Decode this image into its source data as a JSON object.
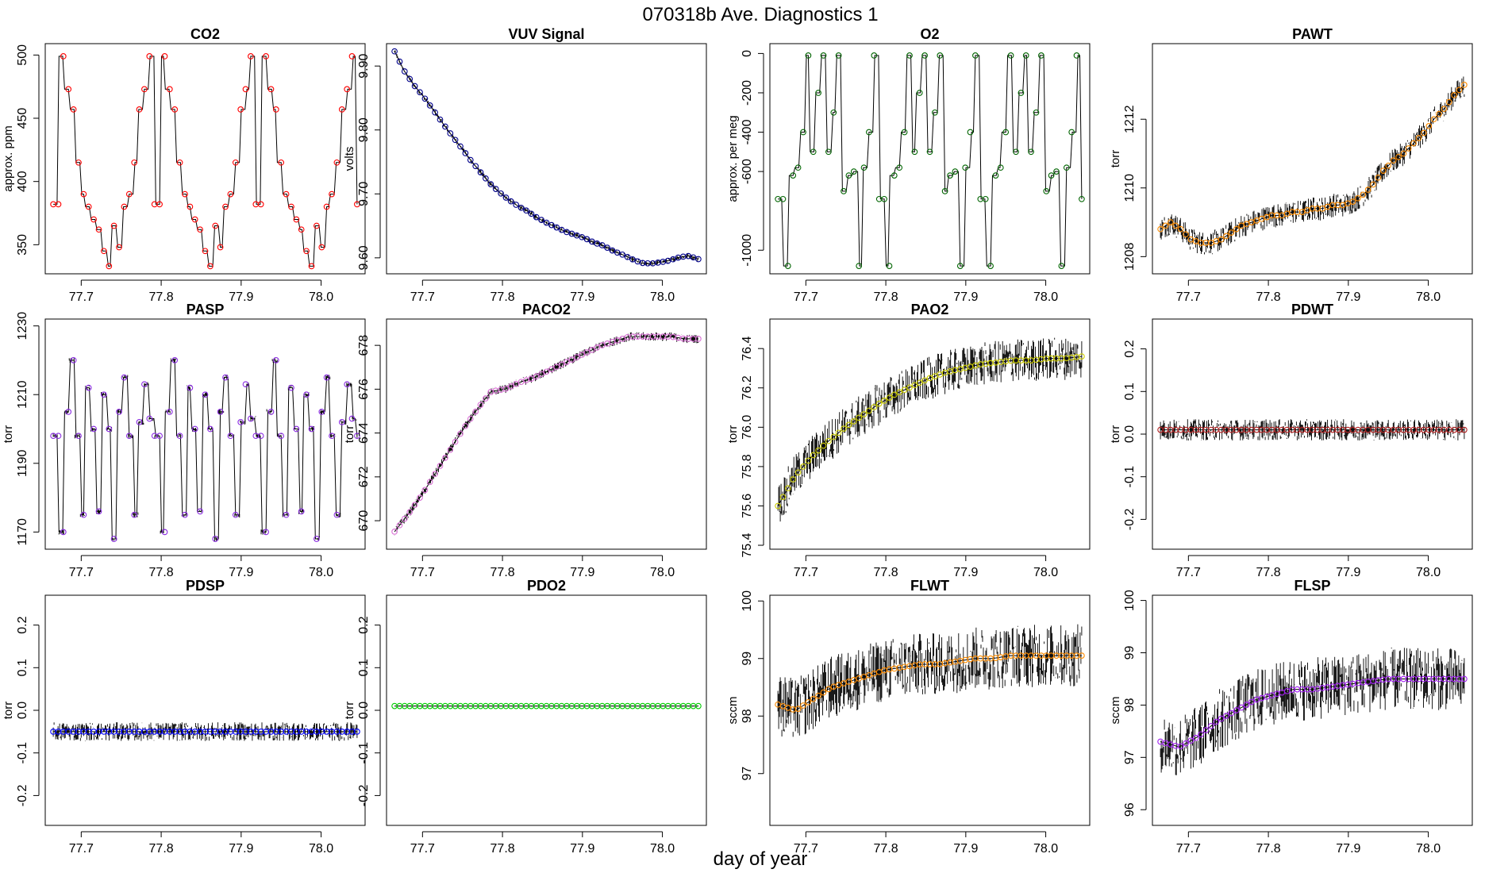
{
  "title": "070318b   Ave. Diagnostics 1",
  "xlabel": "day of year",
  "chart_data": [
    {
      "type": "line",
      "title": "CO2",
      "ylabel": "approx. ppm",
      "xlim": [
        77.655,
        78.055
      ],
      "ylim": [
        327,
        509
      ],
      "xticks": [
        "77.7",
        "77.8",
        "77.9",
        "78.0"
      ],
      "yticks": [
        "350",
        "400",
        "450",
        "500"
      ],
      "pattern": "cal_cycle",
      "levels": [
        382,
        499,
        473,
        457,
        415,
        390,
        380,
        370,
        362,
        345,
        333,
        365,
        348,
        380,
        390,
        415,
        457,
        473,
        499
      ],
      "values": [],
      "noise": 0,
      "marker": "#ff0000"
    },
    {
      "type": "line",
      "title": "VUV Signal",
      "ylabel": "volts",
      "xlim": [
        77.655,
        78.055
      ],
      "ylim": [
        9.575,
        9.935
      ],
      "xticks": [
        "77.7",
        "77.8",
        "77.9",
        "78.0"
      ],
      "yticks": [
        "9.60",
        "9.70",
        "9.80",
        "9.90"
      ],
      "pattern": "smooth",
      "values": [
        9.923,
        9.893,
        9.871,
        9.853,
        9.833,
        9.812,
        9.792,
        9.773,
        9.753,
        9.735,
        9.717,
        9.703,
        9.691,
        9.681,
        9.673,
        9.663,
        9.655,
        9.648,
        9.641,
        9.636,
        9.631,
        9.624,
        9.619,
        9.611,
        9.605,
        9.598,
        9.592,
        9.591,
        9.593,
        9.596,
        9.601,
        9.603,
        9.598
      ],
      "noise": 0.004,
      "marker": "#00008b"
    },
    {
      "type": "line",
      "title": "O2",
      "ylabel": "approx. per meg",
      "xlim": [
        77.655,
        78.055
      ],
      "ylim": [
        -1120,
        50
      ],
      "xticks": [
        "77.7",
        "77.8",
        "77.9",
        "78.0"
      ],
      "yticks": [
        "-1000",
        "-600",
        "-400",
        "-200",
        "0"
      ],
      "pattern": "cal_cycle",
      "levels": [
        -740,
        -1080,
        -620,
        -580,
        -400,
        -10,
        -500,
        -200,
        -10,
        -500,
        -300,
        -10,
        -700,
        -620,
        -600,
        -1080,
        -580,
        -400,
        -10
      ],
      "values": [],
      "noise": 0,
      "marker": "#006400"
    },
    {
      "type": "line",
      "title": "PAWT",
      "ylabel": "torr",
      "xlim": [
        77.655,
        78.055
      ],
      "ylim": [
        1207.5,
        1214.2
      ],
      "xticks": [
        "77.7",
        "77.8",
        "77.9",
        "78.0"
      ],
      "yticks": [
        "1208",
        "1210",
        "1212"
      ],
      "pattern": "smooth",
      "values": [
        1208.8,
        1209.0,
        1208.8,
        1208.5,
        1208.4,
        1208.4,
        1208.5,
        1208.7,
        1208.9,
        1209.0,
        1209.1,
        1209.2,
        1209.2,
        1209.3,
        1209.3,
        1209.4,
        1209.4,
        1209.5,
        1209.5,
        1209.6,
        1209.8,
        1210.1,
        1210.5,
        1210.8,
        1211.0,
        1211.3,
        1211.6,
        1212.0,
        1212.3,
        1212.7,
        1213.0
      ],
      "noise": 0.35,
      "marker": "#ff8c00"
    },
    {
      "type": "line",
      "title": "PASP",
      "ylabel": "torr",
      "xlim": [
        77.655,
        78.055
      ],
      "ylim": [
        1165,
        1232
      ],
      "xticks": [
        "77.7",
        "77.8",
        "77.9",
        "78.0"
      ],
      "yticks": [
        "1170",
        "1190",
        "1210",
        "1230"
      ],
      "pattern": "cal_cycle",
      "levels": [
        1198,
        1170,
        1205,
        1220,
        1198,
        1175,
        1212,
        1200,
        1176,
        1210,
        1200,
        1168,
        1205,
        1215,
        1198,
        1175,
        1202,
        1213,
        1203
      ],
      "values": [],
      "noise": 0.8,
      "marker": "#8a2be2"
    },
    {
      "type": "line",
      "title": "PACO2",
      "ylabel": "torr",
      "xlim": [
        77.655,
        78.055
      ],
      "ylim": [
        668.7,
        679.2
      ],
      "xticks": [
        "77.7",
        "77.8",
        "77.9",
        "78.0"
      ],
      "yticks": [
        "670",
        "672",
        "674",
        "676",
        "678"
      ],
      "pattern": "smooth",
      "values": [
        669.5,
        670.3,
        671.2,
        672.2,
        673.2,
        674.2,
        675.1,
        675.9,
        676.0,
        676.3,
        676.5,
        676.8,
        677.1,
        677.4,
        677.7,
        678.0,
        678.2,
        678.4,
        678.4,
        678.4,
        678.4,
        678.3,
        678.3
      ],
      "noise": 0.2,
      "marker": "#da70d6"
    },
    {
      "type": "line",
      "title": "PAO2",
      "ylabel": "torr",
      "xlim": [
        77.655,
        78.055
      ],
      "ylim": [
        75.38,
        76.55
      ],
      "xticks": [
        "77.7",
        "77.8",
        "77.9",
        "78.0"
      ],
      "yticks": [
        "75.4",
        "75.6",
        "75.8",
        "76.0",
        "76.2",
        "76.4"
      ],
      "pattern": "smooth",
      "values": [
        75.6,
        75.75,
        75.85,
        75.93,
        76.0,
        76.06,
        76.12,
        76.17,
        76.21,
        76.25,
        76.28,
        76.3,
        76.32,
        76.33,
        76.34,
        76.34,
        76.35,
        76.35,
        76.36
      ],
      "noise": 0.11,
      "marker": "#cccc00"
    },
    {
      "type": "line",
      "title": "PDWT",
      "ylabel": "torr",
      "xlim": [
        77.655,
        78.055
      ],
      "ylim": [
        -0.27,
        0.27
      ],
      "xticks": [
        "77.7",
        "77.8",
        "77.9",
        "78.0"
      ],
      "yticks": [
        "-0.2",
        "-0.1",
        "0.0",
        "0.1",
        "0.2"
      ],
      "pattern": "flat",
      "values": [
        0.01
      ],
      "noise": 0.025,
      "marker": "#b22222"
    },
    {
      "type": "line",
      "title": "PDSP",
      "ylabel": "torr",
      "xlim": [
        77.655,
        78.055
      ],
      "ylim": [
        -0.27,
        0.27
      ],
      "xticks": [
        "77.7",
        "77.8",
        "77.9",
        "78.0"
      ],
      "yticks": [
        "-0.2",
        "-0.1",
        "0.0",
        "0.1",
        "0.2"
      ],
      "pattern": "flat",
      "values": [
        -0.05
      ],
      "noise": 0.022,
      "marker": "#0000ff"
    },
    {
      "type": "line",
      "title": "PDO2",
      "ylabel": "torr",
      "xlim": [
        77.655,
        78.055
      ],
      "ylim": [
        -0.27,
        0.27
      ],
      "xticks": [
        "77.7",
        "77.8",
        "77.9",
        "78.0"
      ],
      "yticks": [
        "-0.2",
        "-0.1",
        "0.0",
        "0.1",
        "0.2"
      ],
      "pattern": "flat",
      "values": [
        0.01
      ],
      "noise": 0.001,
      "marker": "#00cc00"
    },
    {
      "type": "line",
      "title": "FLWT",
      "ylabel": "sccm",
      "xlim": [
        77.655,
        78.055
      ],
      "ylim": [
        96.1,
        100.1
      ],
      "xticks": [
        "77.7",
        "77.8",
        "77.9",
        "78.0"
      ],
      "yticks": [
        "97",
        "98",
        "99",
        "100"
      ],
      "pattern": "smooth",
      "values": [
        98.2,
        98.1,
        98.3,
        98.5,
        98.6,
        98.7,
        98.8,
        98.85,
        98.9,
        98.9,
        98.95,
        99.0,
        99.0,
        99.05,
        99.05,
        99.05,
        99.05,
        99.05
      ],
      "noise": 0.55,
      "marker": "#ff8c00"
    },
    {
      "type": "line",
      "title": "FLSP",
      "ylabel": "sccm",
      "xlim": [
        77.655,
        78.055
      ],
      "ylim": [
        95.7,
        100.1
      ],
      "xticks": [
        "77.7",
        "77.8",
        "77.9",
        "78.0"
      ],
      "yticks": [
        "96",
        "97",
        "98",
        "99",
        "100"
      ],
      "pattern": "smooth",
      "values": [
        97.3,
        97.2,
        97.4,
        97.7,
        97.9,
        98.1,
        98.2,
        98.3,
        98.3,
        98.35,
        98.4,
        98.45,
        98.5,
        98.5,
        98.5,
        98.5,
        98.5
      ],
      "noise": 0.6,
      "marker": "#a020f0"
    }
  ]
}
